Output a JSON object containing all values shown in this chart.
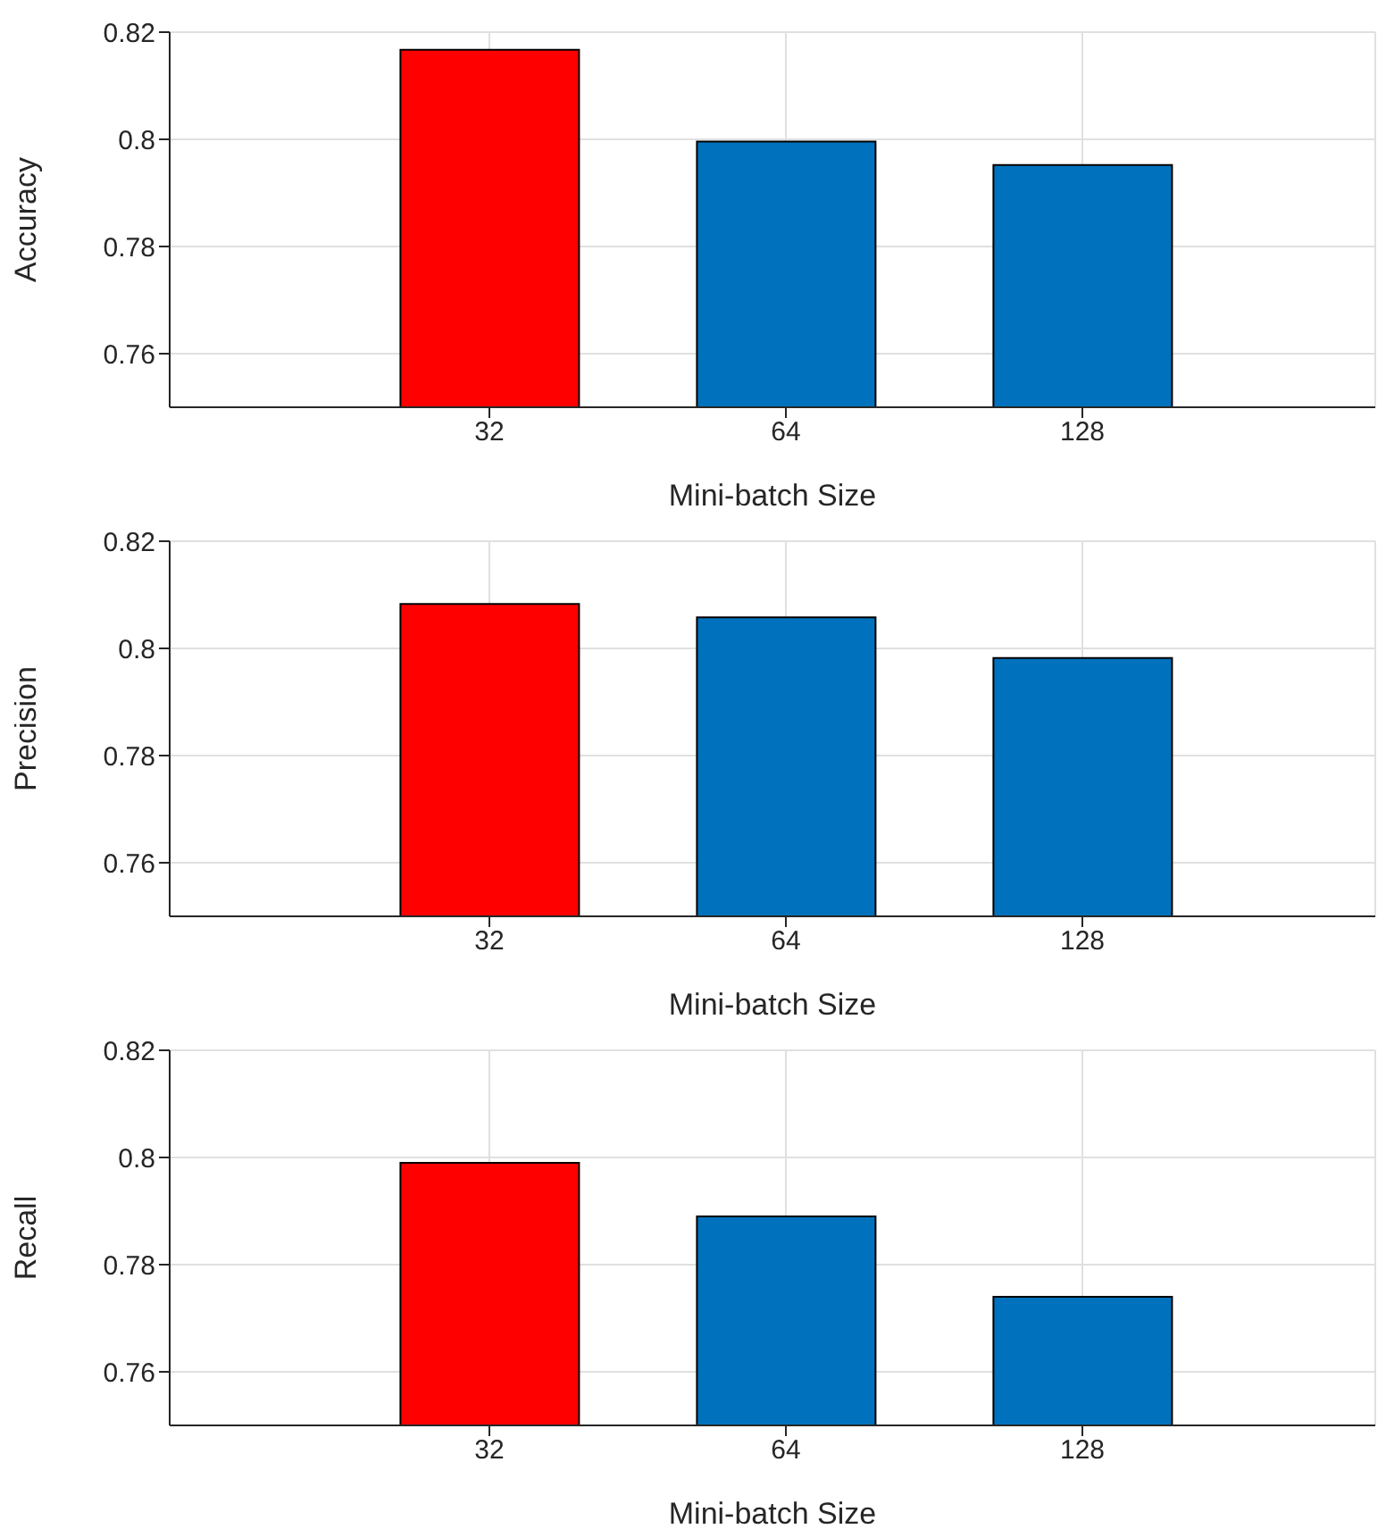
{
  "chart_data": [
    {
      "type": "bar",
      "xlabel": "Mini-batch Size",
      "ylabel": "Accuracy",
      "categories": [
        "32",
        "64",
        "128"
      ],
      "values": [
        0.8167,
        0.7996,
        0.7952
      ],
      "colors": [
        "#ff0000",
        "#0072bd",
        "#0072bd"
      ],
      "ylim": [
        0.75,
        0.82
      ],
      "yticks": [
        {
          "value": 0.76,
          "label": "0.76"
        },
        {
          "value": 0.78,
          "label": "0.78"
        },
        {
          "value": 0.8,
          "label": "0.8"
        },
        {
          "value": 0.82,
          "label": "0.82"
        }
      ],
      "grid": true
    },
    {
      "type": "bar",
      "xlabel": "Mini-batch Size",
      "ylabel": "Precision",
      "categories": [
        "32",
        "64",
        "128"
      ],
      "values": [
        0.8083,
        0.8058,
        0.7982
      ],
      "colors": [
        "#ff0000",
        "#0072bd",
        "#0072bd"
      ],
      "ylim": [
        0.75,
        0.82
      ],
      "yticks": [
        {
          "value": 0.76,
          "label": "0.76"
        },
        {
          "value": 0.78,
          "label": "0.78"
        },
        {
          "value": 0.8,
          "label": "0.8"
        },
        {
          "value": 0.82,
          "label": "0.82"
        }
      ],
      "grid": true
    },
    {
      "type": "bar",
      "xlabel": "Mini-batch Size",
      "ylabel": "Recall",
      "categories": [
        "32",
        "64",
        "128"
      ],
      "values": [
        0.799,
        0.789,
        0.774
      ],
      "colors": [
        "#ff0000",
        "#0072bd",
        "#0072bd"
      ],
      "ylim": [
        0.75,
        0.82
      ],
      "yticks": [
        {
          "value": 0.76,
          "label": "0.76"
        },
        {
          "value": 0.78,
          "label": "0.78"
        },
        {
          "value": 0.8,
          "label": "0.8"
        },
        {
          "value": 0.82,
          "label": "0.82"
        }
      ],
      "grid": true
    }
  ]
}
